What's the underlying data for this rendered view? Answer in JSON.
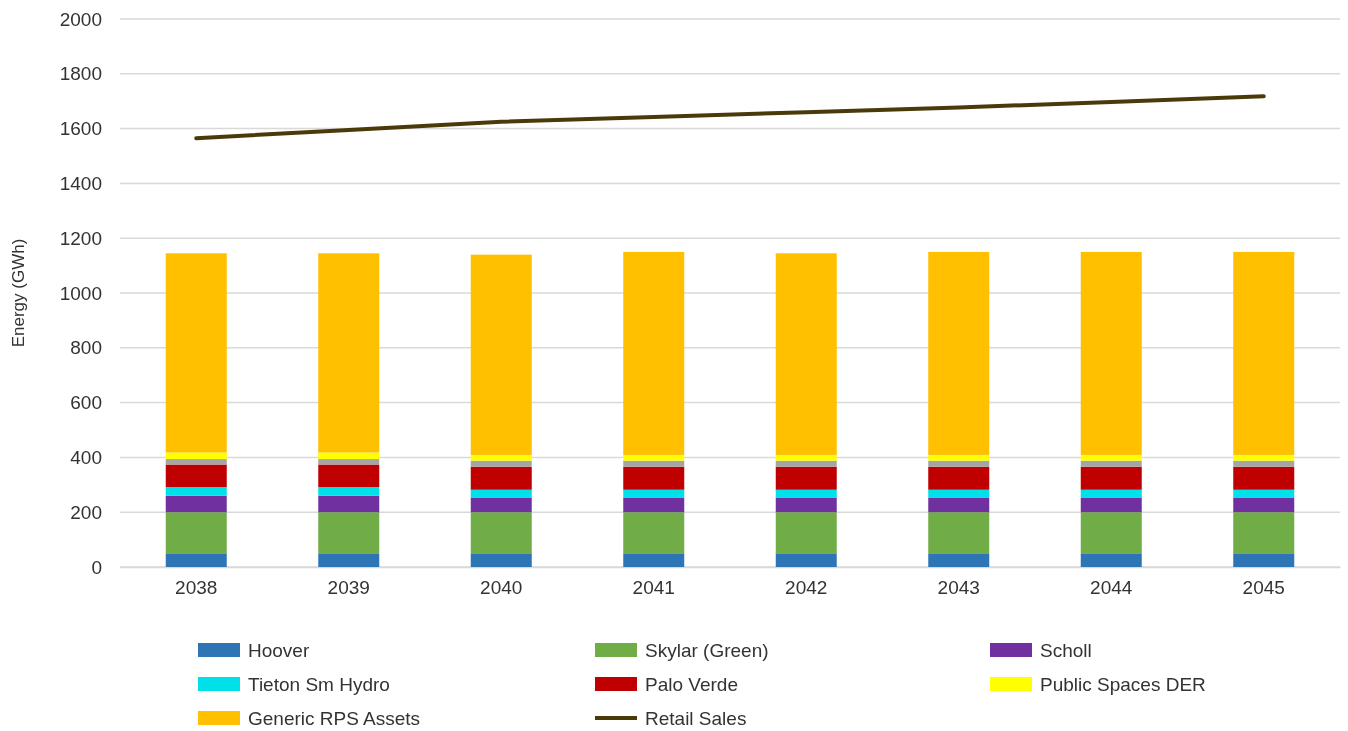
{
  "chart_data": {
    "type": "bar",
    "stacked": true,
    "ylabel": "Energy (GWh)",
    "categories": [
      "2038",
      "2039",
      "2040",
      "2041",
      "2042",
      "2043",
      "2044",
      "2045"
    ],
    "ylim": [
      0,
      2000
    ],
    "yticks": [
      0,
      200,
      400,
      600,
      800,
      1000,
      1200,
      1400,
      1600,
      1800,
      2000
    ],
    "grid": "y",
    "legend": "bottom",
    "series": [
      {
        "name": "Hoover",
        "color": "#2e75b6",
        "values": [
          50,
          50,
          50,
          50,
          50,
          50,
          50,
          50
        ]
      },
      {
        "name": "Skylar (Green)",
        "color": "#70ad47",
        "values": [
          150,
          150,
          150,
          150,
          150,
          150,
          150,
          150
        ]
      },
      {
        "name": "Scholl",
        "color": "#7030a0",
        "values": [
          60,
          60,
          52,
          52,
          52,
          52,
          52,
          52
        ]
      },
      {
        "name": "Tieton Sm Hydro",
        "color": "#00e0e8",
        "values": [
          32,
          32,
          30,
          30,
          30,
          30,
          30,
          30
        ]
      },
      {
        "name": "Palo Verde",
        "color": "#c00000",
        "values": [
          82,
          82,
          84,
          84,
          84,
          84,
          84,
          84
        ]
      },
      {
        "color": "#a5a5a5",
        "values": [
          20,
          20,
          22,
          22,
          22,
          22,
          22,
          22
        ]
      },
      {
        "name": "Public Spaces DER",
        "color": "#ffff00",
        "values": [
          24,
          24,
          21,
          21,
          21,
          21,
          21,
          21
        ]
      },
      {
        "name": "Generic RPS Assets",
        "color": "#ffc000",
        "values": [
          727,
          727,
          731,
          741,
          736,
          741,
          741,
          741
        ]
      },
      {
        "name": "Retail Sales",
        "type": "line",
        "color": "#4a3a0a",
        "values": [
          1565,
          1595,
          1625,
          1642,
          1660,
          1677,
          1697,
          1718
        ]
      }
    ]
  }
}
